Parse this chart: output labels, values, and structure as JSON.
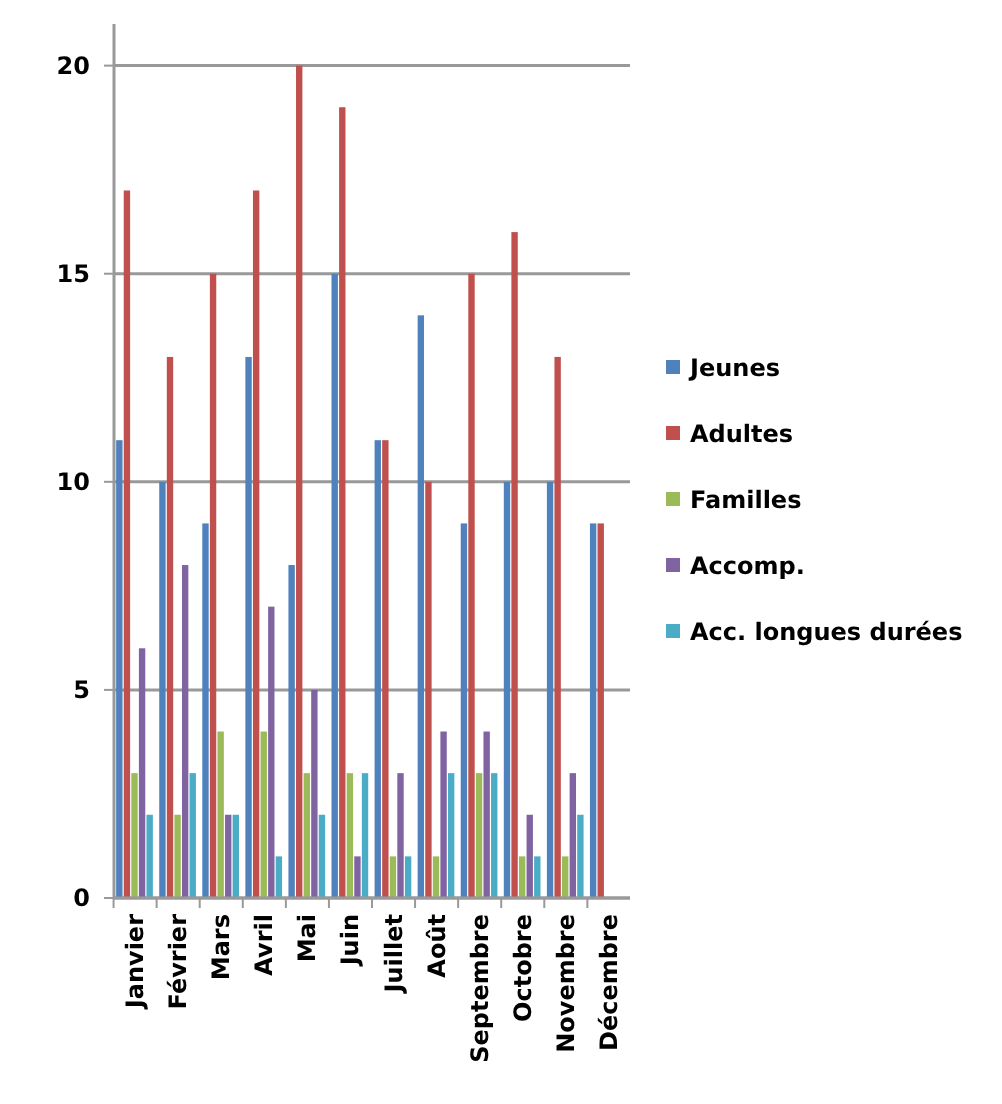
{
  "chart_data": {
    "type": "bar",
    "categories": [
      "Janvier",
      "Février",
      "Mars",
      "Avril",
      "Mai",
      "Juin",
      "Juillet",
      "Août",
      "Septembre",
      "Octobre",
      "Novembre",
      "Décembre"
    ],
    "series": [
      {
        "name": "Jeunes",
        "color": "#4f81bd",
        "values": [
          11,
          10,
          9,
          13,
          8,
          15,
          11,
          14,
          9,
          10,
          10,
          9
        ]
      },
      {
        "name": "Adultes",
        "color": "#c0504d",
        "values": [
          17,
          13,
          15,
          17,
          20,
          19,
          11,
          10,
          15,
          16,
          13,
          9
        ]
      },
      {
        "name": "Familles",
        "color": "#9bbb59",
        "values": [
          3,
          2,
          4,
          4,
          3,
          3,
          1,
          1,
          3,
          1,
          1,
          0
        ]
      },
      {
        "name": "Accomp.",
        "color": "#8064a2",
        "values": [
          6,
          8,
          2,
          7,
          5,
          1,
          3,
          4,
          4,
          2,
          3,
          0
        ]
      },
      {
        "name": "Acc. longues durées",
        "color": "#4bacc6",
        "values": [
          2,
          3,
          2,
          1,
          2,
          3,
          1,
          3,
          3,
          1,
          2,
          0
        ]
      }
    ],
    "ylim": [
      0,
      21
    ],
    "yticks": [
      0,
      5,
      10,
      15,
      20
    ],
    "grid": "y",
    "legend": "right"
  }
}
